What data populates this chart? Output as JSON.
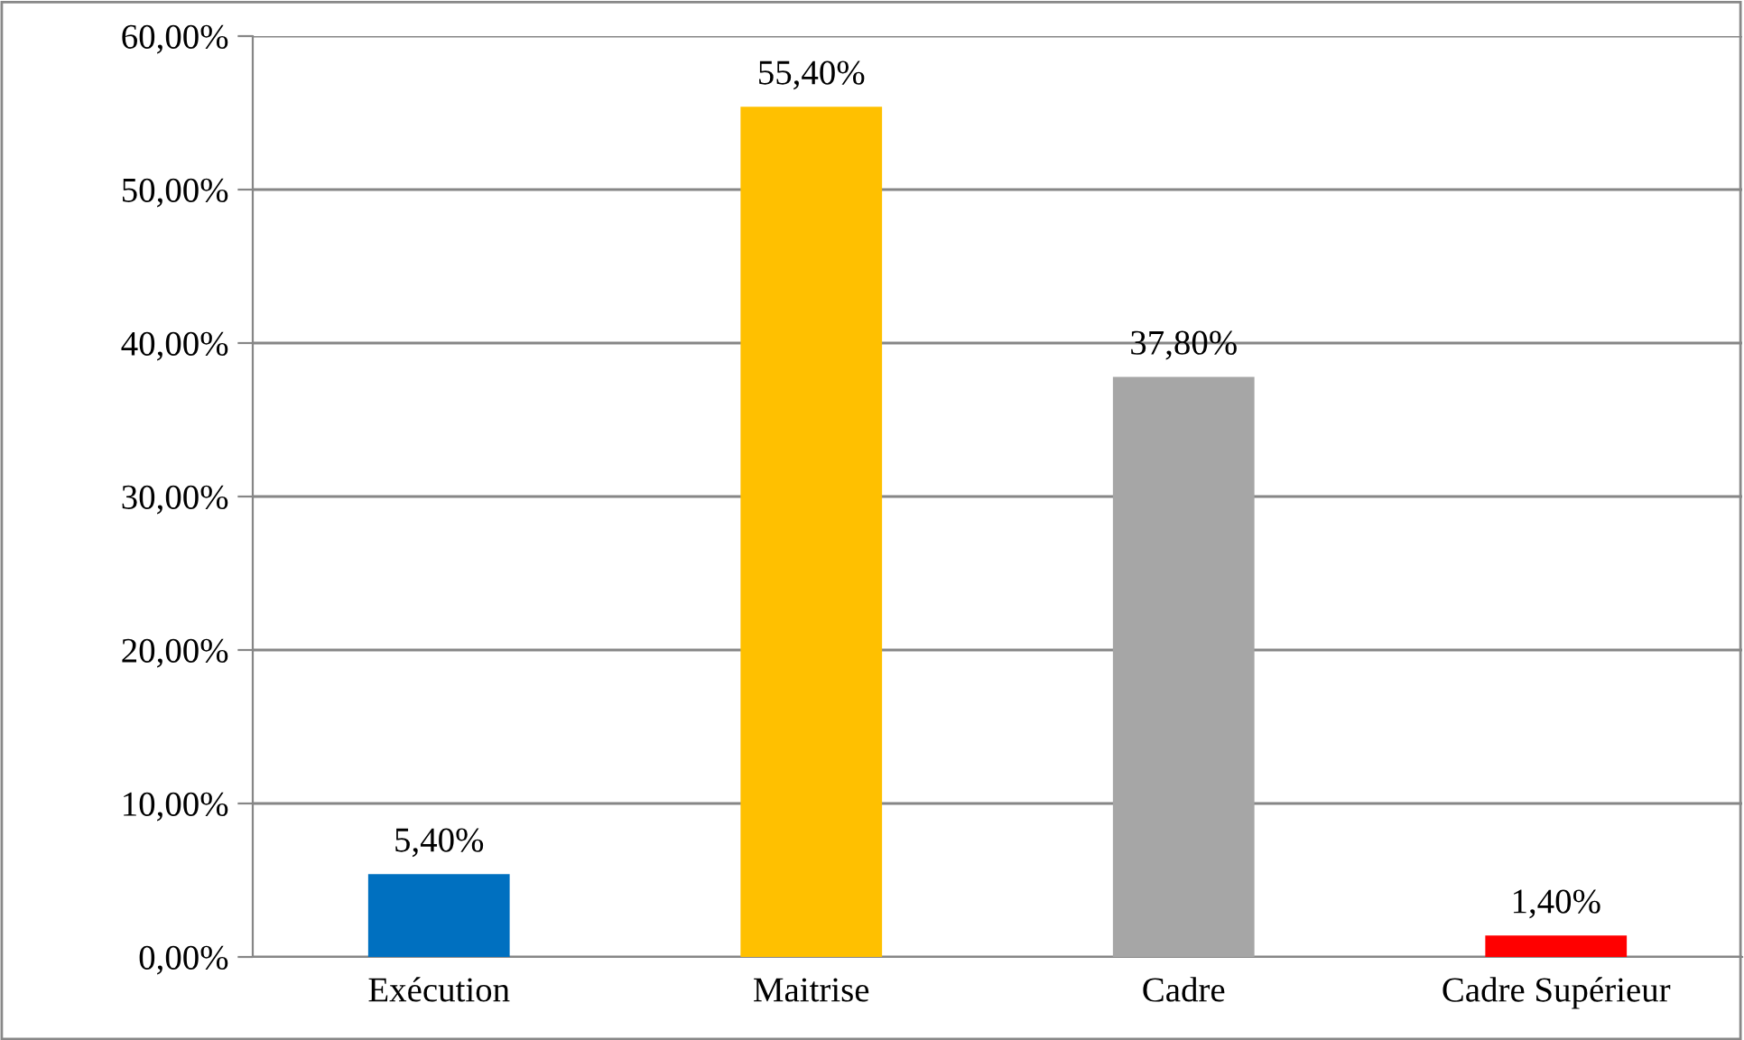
{
  "chart_data": {
    "type": "bar",
    "categories": [
      "Exécution",
      "Maitrise",
      "Cadre",
      "Cadre Supérieur"
    ],
    "values": [
      5.4,
      55.4,
      37.8,
      1.4
    ],
    "colors": [
      "#0070c0",
      "#ffc000",
      "#a6a6a6",
      "#ff0000"
    ],
    "value_labels": [
      "5,40%",
      "55,40%",
      "37,80%",
      "1,40%"
    ],
    "ylim": [
      0,
      60
    ],
    "yticks": [
      {
        "value": 0,
        "label": "0,00%"
      },
      {
        "value": 10,
        "label": "10,00%"
      },
      {
        "value": 20,
        "label": "20,00%"
      },
      {
        "value": 30,
        "label": "30,00%"
      },
      {
        "value": 40,
        "label": "40,00%"
      },
      {
        "value": 50,
        "label": "50,00%"
      },
      {
        "value": 60,
        "label": "60,00%"
      }
    ],
    "grid": "y"
  }
}
